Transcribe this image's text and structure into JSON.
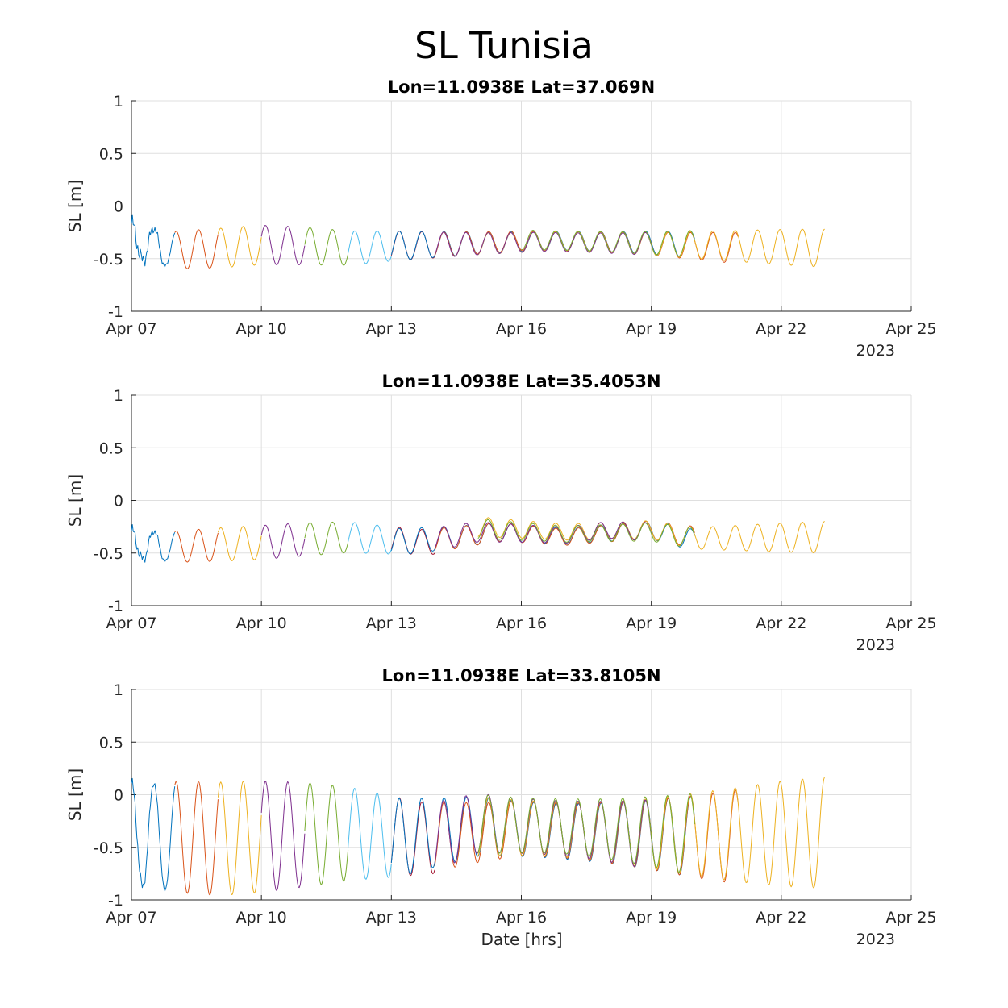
{
  "figure": {
    "title": "SL Tunisia",
    "xlabel": "Date [hrs]"
  },
  "chart_data": [
    {
      "type": "line",
      "title": "Lon=11.0938E  Lat=37.069N",
      "ylabel": "SL [m]",
      "xlabel": "",
      "xlim": [
        "2023-04-07",
        "2023-04-25"
      ],
      "ylim": [
        -1,
        1
      ],
      "x_ticks": [
        "Apr 07",
        "Apr 10",
        "Apr 13",
        "Apr 16",
        "Apr 19",
        "Apr 22",
        "Apr 25"
      ],
      "y_ticks": [
        "1",
        "0.5",
        "0",
        "-0.5",
        "-1"
      ],
      "year_label": "2023",
      "grid": true,
      "tide": {
        "amplitude": 0.14,
        "period_hours": 12.42,
        "peak_hour": 60
      },
      "series": [
        {
          "color": "#0072BD",
          "start": "2023-04-07",
          "end": "2023-04-08",
          "mean": [
            [
              0,
              -0.33
            ],
            [
              24,
              -0.42
            ]
          ],
          "noise": 0.12
        },
        {
          "color": "#D95319",
          "start": "2023-04-08",
          "end": "2023-04-09",
          "mean": [
            [
              0,
              -0.42
            ],
            [
              24,
              -0.4
            ]
          ],
          "noise": 0
        },
        {
          "color": "#EDB120",
          "start": "2023-04-09",
          "end": "2023-04-10",
          "mean": [
            [
              0,
              -0.4
            ],
            [
              24,
              -0.37
            ]
          ],
          "noise": 0
        },
        {
          "color": "#7E2F8E",
          "start": "2023-04-10",
          "end": "2023-04-11",
          "mean": [
            [
              0,
              -0.37
            ],
            [
              24,
              -0.38
            ]
          ],
          "noise": 0
        },
        {
          "color": "#77AC30",
          "start": "2023-04-11",
          "end": "2023-04-12",
          "mean": [
            [
              0,
              -0.38
            ],
            [
              24,
              -0.4
            ]
          ],
          "noise": 0
        },
        {
          "color": "#4DBEEE",
          "start": "2023-04-12",
          "end": "2023-04-13",
          "mean": [
            [
              0,
              -0.4
            ],
            [
              24,
              -0.38
            ]
          ],
          "noise": 0
        },
        {
          "color": "#A2142F",
          "start": "2023-04-13",
          "end": "2023-04-14",
          "mean": [
            [
              0,
              -0.38
            ],
            [
              24,
              -0.37
            ]
          ],
          "noise": 0
        },
        {
          "color": "#0072BD",
          "start": "2023-04-13",
          "end": "2023-04-20",
          "mean": [
            [
              0,
              -0.38
            ],
            [
              48,
              -0.35
            ],
            [
              96,
              -0.33
            ],
            [
              144,
              -0.35
            ],
            [
              168,
              -0.37
            ]
          ],
          "noise": 0
        },
        {
          "color": "#D95319",
          "start": "2023-04-14",
          "end": "2023-04-21",
          "mean": [
            [
              0,
              -0.37
            ],
            [
              48,
              -0.33
            ],
            [
              96,
              -0.34
            ],
            [
              144,
              -0.38
            ],
            [
              168,
              -0.4
            ]
          ],
          "noise": 0
        },
        {
          "color": "#EDB120",
          "start": "2023-04-15",
          "end": "2023-04-23",
          "mean": [
            [
              0,
              -0.36
            ],
            [
              48,
              -0.33
            ],
            [
              96,
              -0.36
            ],
            [
              144,
              -0.38
            ],
            [
              192,
              -0.4
            ]
          ],
          "noise": 0
        },
        {
          "color": "#7E2F8E",
          "start": "2023-04-14",
          "end": "2023-04-19",
          "mean": [
            [
              0,
              -0.37
            ],
            [
              60,
              -0.34
            ],
            [
              120,
              -0.36
            ]
          ],
          "noise": 0
        },
        {
          "color": "#77AC30",
          "start": "2023-04-16",
          "end": "2023-04-20",
          "mean": [
            [
              0,
              -0.32
            ],
            [
              48,
              -0.34
            ],
            [
              96,
              -0.36
            ]
          ],
          "noise": 0
        }
      ]
    },
    {
      "type": "line",
      "title": "Lon=11.0938E  Lat=35.4053N",
      "ylabel": "SL [m]",
      "xlabel": "",
      "xlim": [
        "2023-04-07",
        "2023-04-25"
      ],
      "ylim": [
        -1,
        1
      ],
      "x_ticks": [
        "Apr 07",
        "Apr 10",
        "Apr 13",
        "Apr 16",
        "Apr 19",
        "Apr 22",
        "Apr 25"
      ],
      "y_ticks": [
        "1",
        "0.5",
        "0",
        "-0.5",
        "-1"
      ],
      "year_label": "2023",
      "grid": true,
      "tide": {
        "amplitude": 0.12,
        "period_hours": 12.42,
        "peak_hour": 70
      },
      "series": [
        {
          "color": "#0072BD",
          "start": "2023-04-07",
          "end": "2023-04-08",
          "mean": [
            [
              0,
              -0.42
            ],
            [
              24,
              -0.44
            ]
          ],
          "noise": 0.08
        },
        {
          "color": "#D95319",
          "start": "2023-04-08",
          "end": "2023-04-09",
          "mean": [
            [
              0,
              -0.44
            ],
            [
              24,
              -0.42
            ]
          ],
          "noise": 0
        },
        {
          "color": "#EDB120",
          "start": "2023-04-09",
          "end": "2023-04-10",
          "mean": [
            [
              0,
              -0.42
            ],
            [
              24,
              -0.4
            ]
          ],
          "noise": 0
        },
        {
          "color": "#7E2F8E",
          "start": "2023-04-10",
          "end": "2023-04-11",
          "mean": [
            [
              0,
              -0.4
            ],
            [
              24,
              -0.37
            ]
          ],
          "noise": 0
        },
        {
          "color": "#77AC30",
          "start": "2023-04-11",
          "end": "2023-04-12",
          "mean": [
            [
              0,
              -0.37
            ],
            [
              24,
              -0.35
            ]
          ],
          "noise": 0
        },
        {
          "color": "#4DBEEE",
          "start": "2023-04-12",
          "end": "2023-04-13",
          "mean": [
            [
              0,
              -0.35
            ],
            [
              24,
              -0.38
            ]
          ],
          "noise": 0
        },
        {
          "color": "#A2142F",
          "start": "2023-04-13",
          "end": "2023-04-14",
          "mean": [
            [
              0,
              -0.38
            ],
            [
              24,
              -0.4
            ]
          ],
          "noise": 0
        },
        {
          "color": "#0072BD",
          "start": "2023-04-13",
          "end": "2023-04-20",
          "mean": [
            [
              0,
              -0.4
            ],
            [
              36,
              -0.35
            ],
            [
              60,
              -0.3
            ],
            [
              96,
              -0.34
            ],
            [
              144,
              -0.28
            ],
            [
              168,
              -0.38
            ]
          ],
          "noise": 0
        },
        {
          "color": "#D95319",
          "start": "2023-04-14",
          "end": "2023-04-20",
          "mean": [
            [
              0,
              -0.38
            ],
            [
              36,
              -0.3
            ],
            [
              72,
              -0.35
            ],
            [
              120,
              -0.28
            ],
            [
              144,
              -0.35
            ]
          ],
          "noise": 0
        },
        {
          "color": "#EDB120",
          "start": "2023-04-15",
          "end": "2023-04-23",
          "mean": [
            [
              0,
              -0.25
            ],
            [
              48,
              -0.3
            ],
            [
              96,
              -0.28
            ],
            [
              120,
              -0.36
            ],
            [
              192,
              -0.35
            ]
          ],
          "noise": 0
        },
        {
          "color": "#7E2F8E",
          "start": "2023-04-14",
          "end": "2023-04-19",
          "mean": [
            [
              0,
              -0.37
            ],
            [
              24,
              -0.3
            ],
            [
              72,
              -0.33
            ],
            [
              96,
              -0.28
            ],
            [
              120,
              -0.3
            ]
          ],
          "noise": 0
        },
        {
          "color": "#77AC30",
          "start": "2023-04-15",
          "end": "2023-04-20",
          "mean": [
            [
              0,
              -0.27
            ],
            [
              48,
              -0.32
            ],
            [
              96,
              -0.3
            ],
            [
              120,
              -0.36
            ]
          ],
          "noise": 0
        }
      ]
    },
    {
      "type": "line",
      "title": "Lon=11.0938E  Lat=33.8105N",
      "ylabel": "SL [m]",
      "xlabel": "Date [hrs]",
      "xlim": [
        "2023-04-07",
        "2023-04-25"
      ],
      "ylim": [
        -1,
        1
      ],
      "x_ticks": [
        "Apr 07",
        "Apr 10",
        "Apr 13",
        "Apr 16",
        "Apr 19",
        "Apr 22",
        "Apr 25"
      ],
      "y_ticks": [
        "1",
        "0.5",
        "0",
        "-0.5",
        "-1"
      ],
      "year_label": "2023",
      "grid": true,
      "tide": {
        "amplitude": 0.4,
        "period_hours": 12.42,
        "peak_hour": 50
      },
      "series": [
        {
          "color": "#0072BD",
          "start": "2023-04-07",
          "end": "2023-04-08",
          "mean": [
            [
              0,
              -0.38
            ],
            [
              24,
              -0.4
            ]
          ],
          "noise": 0.08
        },
        {
          "color": "#D95319",
          "start": "2023-04-08",
          "end": "2023-04-09",
          "mean": [
            [
              0,
              -0.4
            ],
            [
              24,
              -0.42
            ]
          ],
          "noise": 0
        },
        {
          "color": "#EDB120",
          "start": "2023-04-09",
          "end": "2023-04-10",
          "mean": [
            [
              0,
              -0.42
            ],
            [
              24,
              -0.4
            ]
          ],
          "noise": 0
        },
        {
          "color": "#7E2F8E",
          "start": "2023-04-10",
          "end": "2023-04-11",
          "mean": [
            [
              0,
              -0.4
            ],
            [
              24,
              -0.38
            ]
          ],
          "noise": 0
        },
        {
          "color": "#77AC30",
          "start": "2023-04-11",
          "end": "2023-04-12",
          "mean": [
            [
              0,
              -0.38
            ],
            [
              24,
              -0.37
            ]
          ],
          "noise": 0
        },
        {
          "color": "#4DBEEE",
          "start": "2023-04-12",
          "end": "2023-04-13",
          "mean": [
            [
              0,
              -0.37
            ],
            [
              24,
              -0.4
            ]
          ],
          "noise": 0
        },
        {
          "color": "#A2142F",
          "start": "2023-04-13",
          "end": "2023-04-14",
          "mean": [
            [
              0,
              -0.4
            ],
            [
              24,
              -0.42
            ]
          ],
          "noise": 0
        },
        {
          "color": "#0072BD",
          "start": "2023-04-13",
          "end": "2023-04-20",
          "mean": [
            [
              0,
              -0.42
            ],
            [
              48,
              -0.3
            ],
            [
              96,
              -0.35
            ],
            [
              144,
              -0.38
            ],
            [
              168,
              -0.4
            ]
          ],
          "noise": 0
        },
        {
          "color": "#D95319",
          "start": "2023-04-14",
          "end": "2023-04-21",
          "mean": [
            [
              0,
              -0.4
            ],
            [
              48,
              -0.32
            ],
            [
              96,
              -0.36
            ],
            [
              144,
              -0.4
            ],
            [
              168,
              -0.4
            ]
          ],
          "noise": 0
        },
        {
          "color": "#EDB120",
          "start": "2023-04-15",
          "end": "2023-04-23",
          "mean": [
            [
              0,
              -0.3
            ],
            [
              48,
              -0.33
            ],
            [
              96,
              -0.37
            ],
            [
              144,
              -0.38
            ],
            [
              192,
              -0.36
            ]
          ],
          "noise": 0
        },
        {
          "color": "#7E2F8E",
          "start": "2023-04-14",
          "end": "2023-04-19",
          "mean": [
            [
              0,
              -0.4
            ],
            [
              24,
              -0.27
            ],
            [
              72,
              -0.32
            ],
            [
              120,
              -0.38
            ]
          ],
          "noise": 0
        },
        {
          "color": "#77AC30",
          "start": "2023-04-15",
          "end": "2023-04-20",
          "mean": [
            [
              0,
              -0.28
            ],
            [
              48,
              -0.3
            ],
            [
              96,
              -0.35
            ],
            [
              120,
              -0.38
            ]
          ],
          "noise": 0
        }
      ]
    }
  ]
}
